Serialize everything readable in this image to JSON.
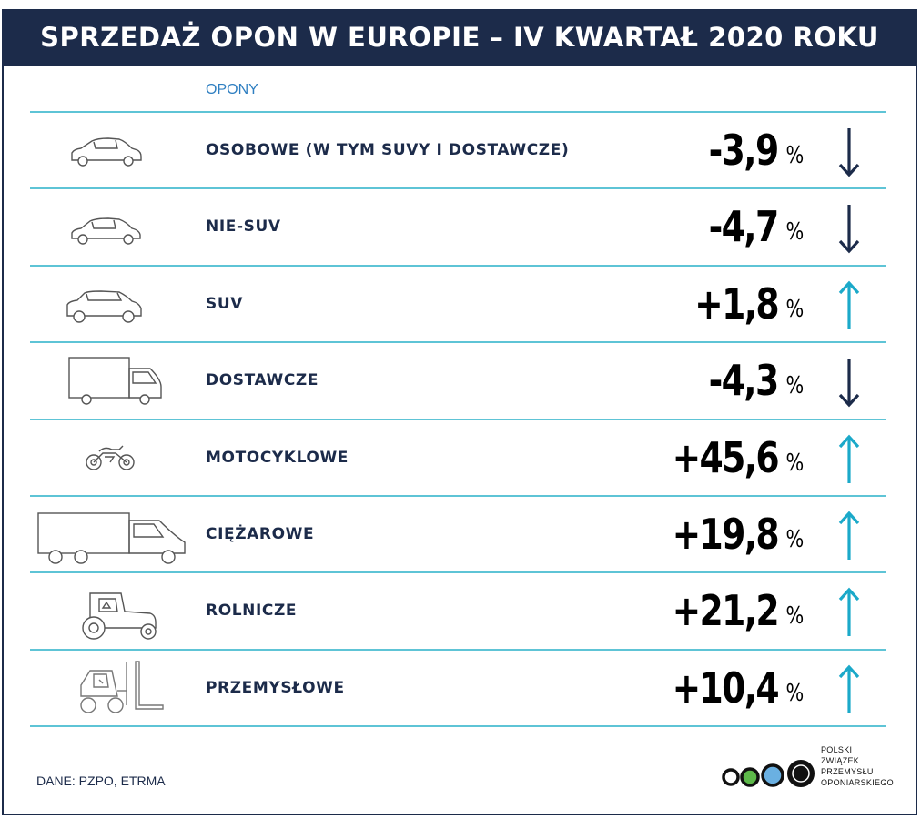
{
  "header": {
    "title": "SPRZEDAŻ OPON W EUROPIE – IV KWARTAŁ 2020 ROKU"
  },
  "chart_data": {
    "type": "table",
    "title": "SPRZEDAŻ OPON W EUROPIE – IV KWARTAŁ 2020 ROKU",
    "column_header": "OPONY",
    "unit": "%",
    "rows": [
      {
        "label": "OSOBOWE (W TYM SUVY I DOSTAWCZE)",
        "display": "-3,9",
        "value": -3.9,
        "direction": "down",
        "icon": "car-icon"
      },
      {
        "label": "NIE-SUV",
        "display": "-4,7",
        "value": -4.7,
        "direction": "down",
        "icon": "hatchback-icon"
      },
      {
        "label": "SUV",
        "display": "+1,8",
        "value": 1.8,
        "direction": "up",
        "icon": "suv-icon"
      },
      {
        "label": "DOSTAWCZE",
        "display": "-4,3",
        "value": -4.3,
        "direction": "down",
        "icon": "van-icon"
      },
      {
        "label": "MOTOCYKLOWE",
        "display": "+45,6",
        "value": 45.6,
        "direction": "up",
        "icon": "motorcycle-icon"
      },
      {
        "label": "CIĘŻAROWE",
        "display": "+19,8",
        "value": 19.8,
        "direction": "up",
        "icon": "truck-icon"
      },
      {
        "label": "ROLNICZE",
        "display": "+21,2",
        "value": 21.2,
        "direction": "up",
        "icon": "tractor-icon"
      },
      {
        "label": "PRZEMYSŁOWE",
        "display": "+10,4",
        "value": 10.4,
        "direction": "up",
        "icon": "forklift-icon"
      }
    ]
  },
  "footer": {
    "source": "DANE: PZPO, ETRMA",
    "logo_lines": [
      "POLSKI",
      "ZWIĄZEK",
      "PRZEMYSŁU",
      "OPONIARSKIEGO"
    ]
  },
  "colors": {
    "navy": "#1c2b4a",
    "accent": "#5ec4d6",
    "up_arrow": "#1ba9c9",
    "down_arrow": "#1c2b4a",
    "logo_green": "#5db94a",
    "logo_blue": "#6ab0e2"
  }
}
